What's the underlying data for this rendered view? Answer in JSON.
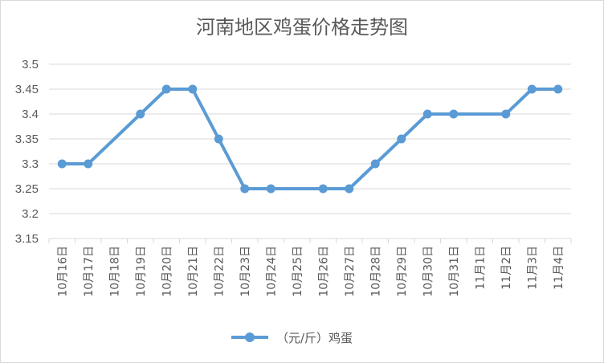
{
  "chart_data": {
    "type": "line",
    "title": "河南地区鸡蛋价格走势图",
    "categories": [
      "10月16日",
      "10月17日",
      "10月18日",
      "10月19日",
      "10月20日",
      "10月21日",
      "10月22日",
      "10月23日",
      "10月24日",
      "10月25日",
      "10月26日",
      "10月27日",
      "10月28日",
      "10月29日",
      "10月30日",
      "10月31日",
      "11月1日",
      "11月2日",
      "11月3日",
      "11月4日"
    ],
    "series": [
      {
        "name": "（元/斤）鸡蛋",
        "color": "#5b9bd5",
        "values": [
          3.3,
          3.3,
          null,
          3.4,
          3.45,
          3.45,
          3.35,
          3.25,
          3.25,
          null,
          3.25,
          3.25,
          3.3,
          3.35,
          3.4,
          3.4,
          null,
          3.4,
          3.45,
          3.45
        ]
      }
    ],
    "ylim": [
      3.15,
      3.5
    ],
    "yticks": [
      "3.15",
      "3.2",
      "3.25",
      "3.3",
      "3.35",
      "3.4",
      "3.45",
      "3.5"
    ],
    "grid": true,
    "legend_position": "bottom",
    "xlabel": "",
    "ylabel": ""
  }
}
